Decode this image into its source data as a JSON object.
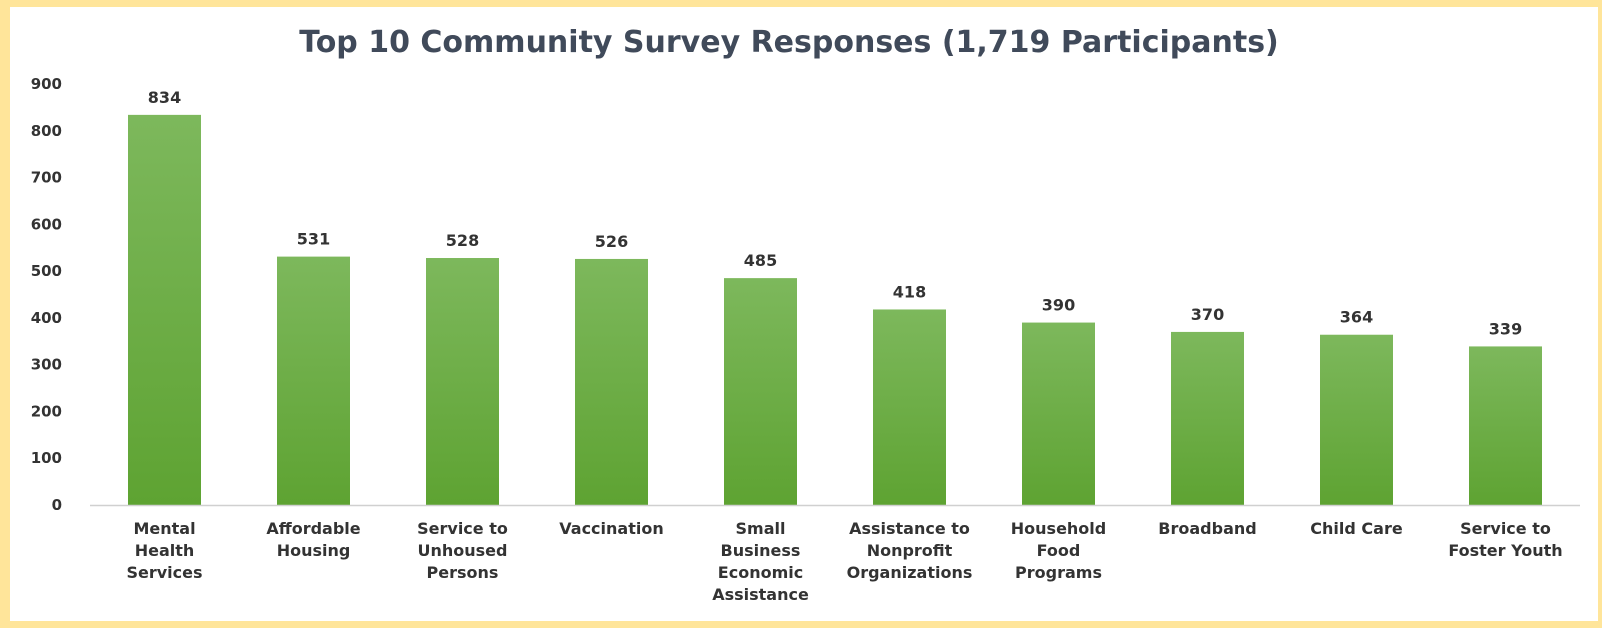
{
  "chart_data": {
    "type": "bar",
    "title": "Top 10 Community Survey Responses (1,719 Participants)",
    "categories": [
      [
        "Mental",
        "Health",
        "Services"
      ],
      [
        "Affordable",
        "Housing"
      ],
      [
        "Service to",
        "Unhoused",
        "Persons"
      ],
      [
        "Vaccination"
      ],
      [
        "Small",
        "Business",
        "Economic",
        "Assistance"
      ],
      [
        "Assistance to",
        "Nonprofit",
        "Organizations"
      ],
      [
        "Household",
        "Food",
        "Programs"
      ],
      [
        "Broadband"
      ],
      [
        "Child Care"
      ],
      [
        "Service to",
        "Foster Youth"
      ]
    ],
    "values": [
      834,
      531,
      528,
      526,
      485,
      418,
      390,
      370,
      364,
      339
    ],
    "data_labels": [
      "834",
      "531",
      "528",
      "526",
      "485",
      "418",
      "390",
      "370",
      "364",
      "339"
    ],
    "yticks": [
      "0",
      "100",
      "200",
      "300",
      "400",
      "500",
      "600",
      "700",
      "800",
      "900"
    ],
    "ylim": [
      0,
      900
    ],
    "grid": false,
    "legend": "none",
    "colors": {
      "bar_top": "#7db85c",
      "bar_bottom": "#5ea332",
      "axis": "#d0d0d0",
      "border": "#ffe59a"
    }
  }
}
